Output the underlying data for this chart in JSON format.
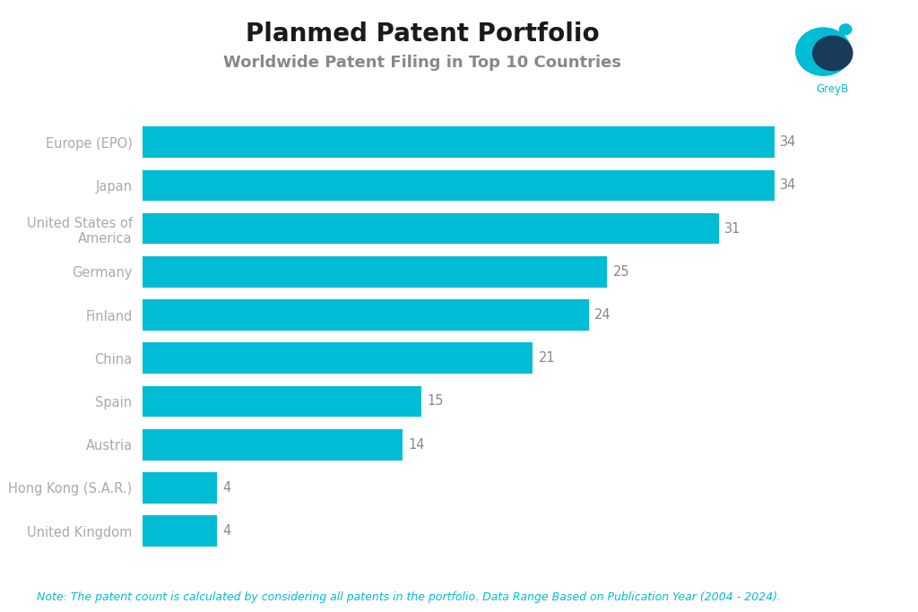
{
  "title": "Planmed Patent Portfolio",
  "subtitle": "Worldwide Patent Filing in Top 10 Countries",
  "note": "Note: The patent count is calculated by considering all patents in the portfolio. Data Range Based on Publication Year (2004 - 2024).",
  "categories": [
    "Europe (EPO)",
    "Japan",
    "United States of\nAmerica",
    "Germany",
    "Finland",
    "China",
    "Spain",
    "Austria",
    "Hong Kong (S.A.R.)",
    "United Kingdom"
  ],
  "values": [
    34,
    34,
    31,
    25,
    24,
    21,
    15,
    14,
    4,
    4
  ],
  "bar_color": "#00BCD4",
  "background_color": "#FFFFFF",
  "title_color": "#1a1a1a",
  "subtitle_color": "#888888",
  "label_color": "#aaaaaa",
  "value_color": "#888888",
  "note_color": "#00BCD4",
  "title_fontsize": 20,
  "subtitle_fontsize": 13,
  "label_fontsize": 10.5,
  "value_fontsize": 10.5,
  "note_fontsize": 9,
  "xlim": [
    0,
    38
  ],
  "bar_height": 0.72,
  "logo_teal": "#00BCD4",
  "logo_dark": "#1a3a5c",
  "greyb_color": "#00BCD4"
}
